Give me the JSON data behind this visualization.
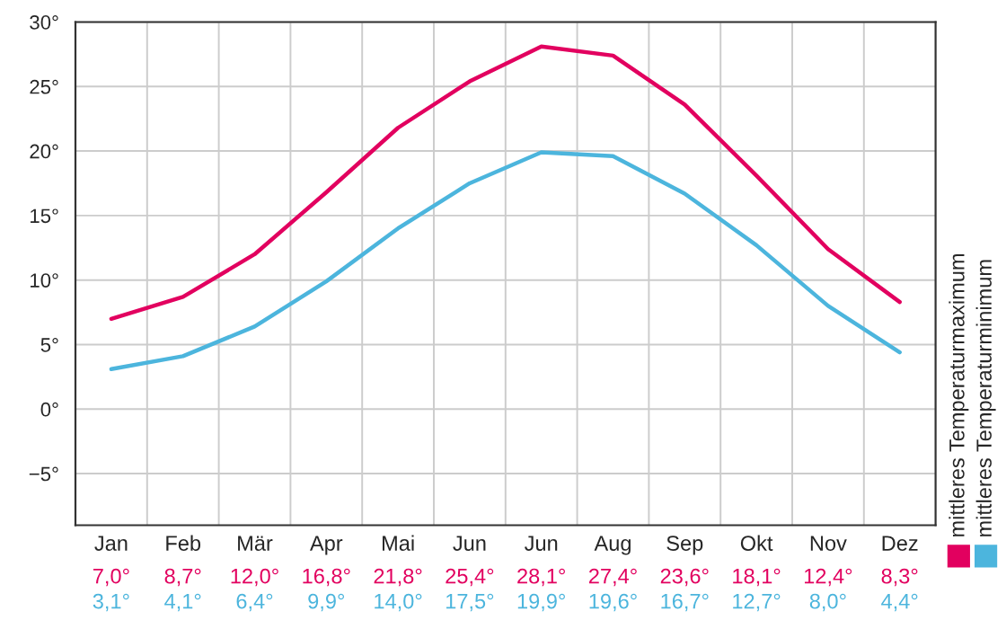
{
  "chart_data": {
    "type": "line",
    "categories": [
      "Jan",
      "Feb",
      "Mär",
      "Apr",
      "Mai",
      "Jun",
      "Jun",
      "Aug",
      "Sep",
      "Okt",
      "Nov",
      "Dez"
    ],
    "series": [
      {
        "name": "mittleres Temperaturmaximum",
        "color": "#e2005f",
        "values": [
          7.0,
          8.7,
          12.0,
          16.8,
          21.8,
          25.4,
          28.1,
          27.4,
          23.6,
          18.1,
          12.4,
          8.3
        ],
        "value_labels": [
          "7,0°",
          "8,7°",
          "12,0°",
          "16,8°",
          "21,8°",
          "25,4°",
          "28,1°",
          "27,4°",
          "23,6°",
          "18,1°",
          "12,4°",
          "8,3°"
        ]
      },
      {
        "name": "mittleres Temperaturminimum",
        "color": "#4cb5dd",
        "values": [
          3.1,
          4.1,
          6.4,
          9.9,
          14.0,
          17.5,
          19.9,
          19.6,
          16.7,
          12.7,
          8.0,
          4.4
        ],
        "value_labels": [
          "3,1°",
          "4,1°",
          "6,4°",
          "9,9°",
          "14,0°",
          "17,5°",
          "19,9°",
          "19,6°",
          "16,7°",
          "12,7°",
          "8,0°",
          "4,4°"
        ]
      }
    ],
    "ylim": [
      -9,
      30
    ],
    "yticks": [
      {
        "value": -5,
        "label": "−5°"
      },
      {
        "value": 0,
        "label": "0°"
      },
      {
        "value": 5,
        "label": "5°"
      },
      {
        "value": 10,
        "label": "10°"
      },
      {
        "value": 15,
        "label": "15°"
      },
      {
        "value": 20,
        "label": "20°"
      },
      {
        "value": 25,
        "label": "25°"
      },
      {
        "value": 30,
        "label": "30°"
      }
    ],
    "grid": true,
    "legend": "right",
    "marker": "none",
    "line_style": "solid"
  }
}
